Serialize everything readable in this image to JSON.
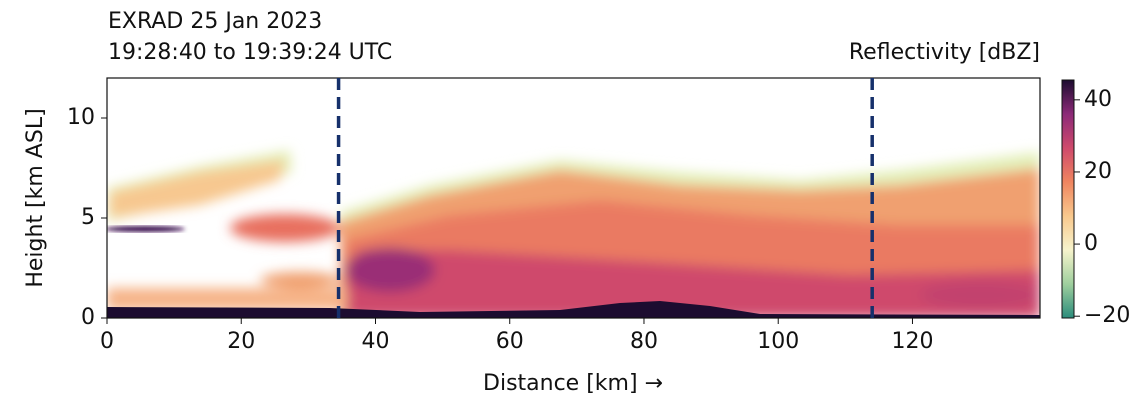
{
  "chart_data": {
    "type": "heatmap",
    "title": "EXRAD 25 Jan 2023",
    "subtitle": "19:28:40 to 19:39:24 UTC",
    "colorbar_label": "Reflectivity [dBZ]",
    "x_label": "Distance [km] →",
    "y_label": "Height [km ASL]",
    "xlim": [
      0,
      139
    ],
    "xticks": [
      0,
      20,
      40,
      60,
      80,
      100,
      120
    ],
    "ylim": [
      0,
      12
    ],
    "yticks": [
      0,
      5,
      10
    ],
    "clim": [
      -20.5,
      45.5
    ],
    "cticks": [
      {
        "value": -20,
        "label": "−20"
      },
      0,
      20,
      40
    ],
    "colormap": [
      "#2b8c7c",
      "#9fcf9e",
      "#f6f3cc",
      "#f8c88d",
      "#ef8560",
      "#cf4a6c",
      "#8c2a78",
      "#1c0c30"
    ],
    "vlines": [
      34.5,
      114
    ],
    "vline_color": "#16306b"
  }
}
